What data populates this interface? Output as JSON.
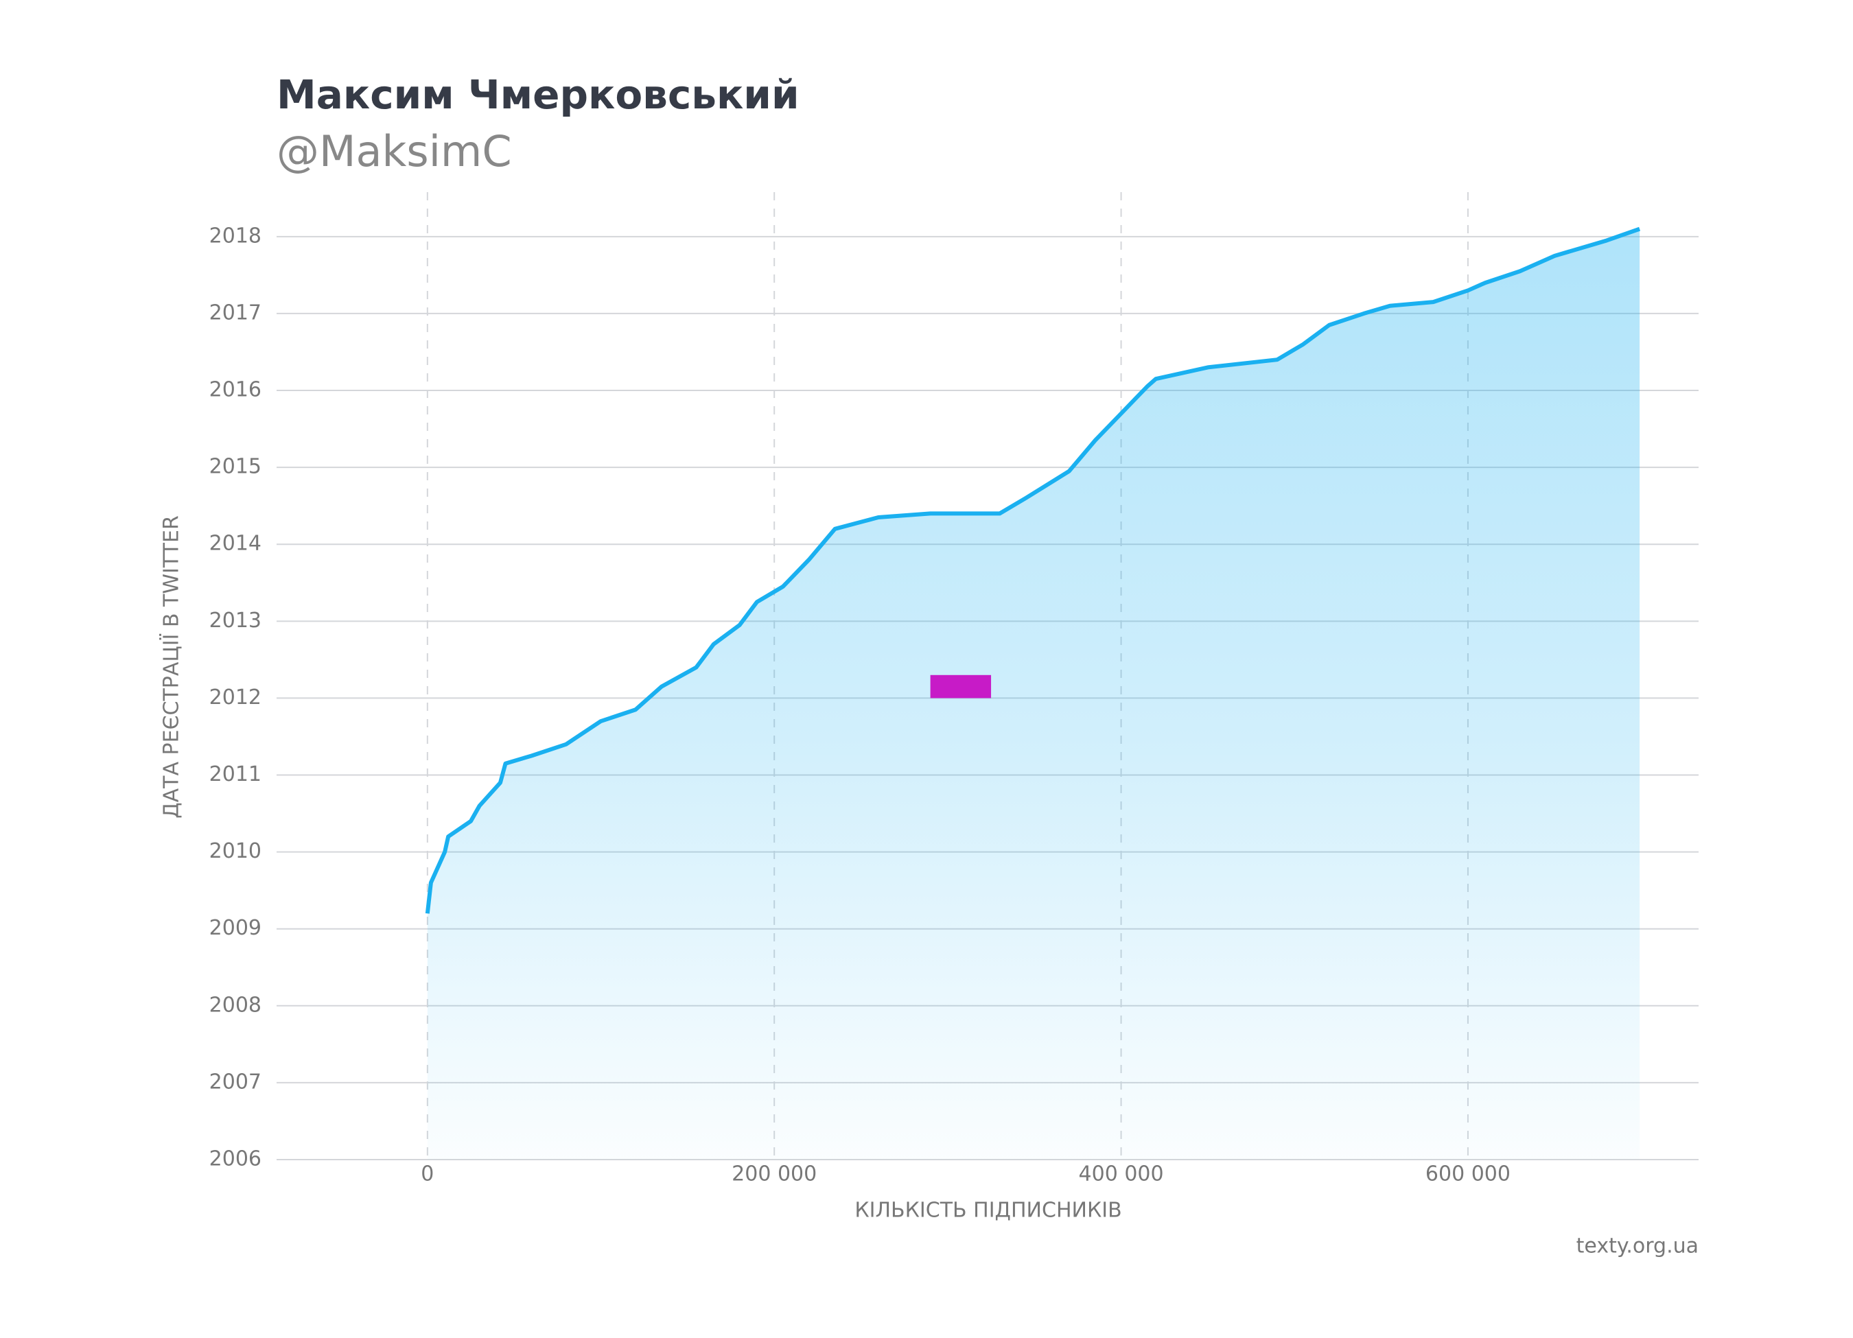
{
  "chart_data": {
    "type": "area",
    "title": "Максим Чмерковський",
    "subtitle": "@MaksimC",
    "x_label": "КІЛЬКІСТЬ ПІДПИСНИКІВ",
    "y_label": "ДАТА РЕЄСТРАЦІЇ В TWITTER",
    "source": "texty.org.ua",
    "color": "#1ab0f0",
    "x": [
      0,
      2000,
      10000,
      12000,
      25000,
      30000,
      42000,
      45000,
      60000,
      80000,
      100000,
      120000,
      135000,
      155000,
      165000,
      180000,
      190000,
      205000,
      220000,
      235000,
      260000,
      290000,
      330000,
      345000,
      370000,
      385000,
      400000,
      415000,
      420000,
      450000,
      490000,
      505000,
      520000,
      540000,
      555000,
      580000,
      600000,
      610000,
      630000,
      650000,
      680000,
      699000
    ],
    "values": [
      2009.2,
      2009.6,
      2010.0,
      2010.2,
      2010.4,
      2010.6,
      2010.9,
      2011.15,
      2011.25,
      2011.4,
      2011.7,
      2011.85,
      2012.15,
      2012.4,
      2012.7,
      2012.95,
      2013.25,
      2013.45,
      2013.8,
      2014.2,
      2014.35,
      2014.4,
      2014.4,
      2014.6,
      2014.95,
      2015.35,
      2015.7,
      2016.05,
      2016.15,
      2016.3,
      2016.4,
      2016.6,
      2016.85,
      2017.0,
      2017.1,
      2017.15,
      2017.3,
      2017.4,
      2017.55,
      2017.75,
      2017.95,
      2018.1
    ],
    "highlight": {
      "xlim": [
        290000,
        325000
      ],
      "ylim": [
        2012.0,
        2012.3
      ],
      "color": "#c71bc7"
    },
    "xlim": [
      -87000,
      733000
    ],
    "ylim": [
      2006,
      2018.4
    ],
    "xticks": [
      0,
      {
        "value": 200000,
        "label": "200 000"
      },
      {
        "value": 400000,
        "label": "400 000"
      },
      {
        "value": 600000,
        "label": "600 000"
      }
    ],
    "yticks": [
      2006,
      2007,
      2008,
      2009,
      2010,
      2011,
      2012,
      2013,
      2014,
      2015,
      2016,
      2017,
      2018
    ],
    "grid": true
  }
}
